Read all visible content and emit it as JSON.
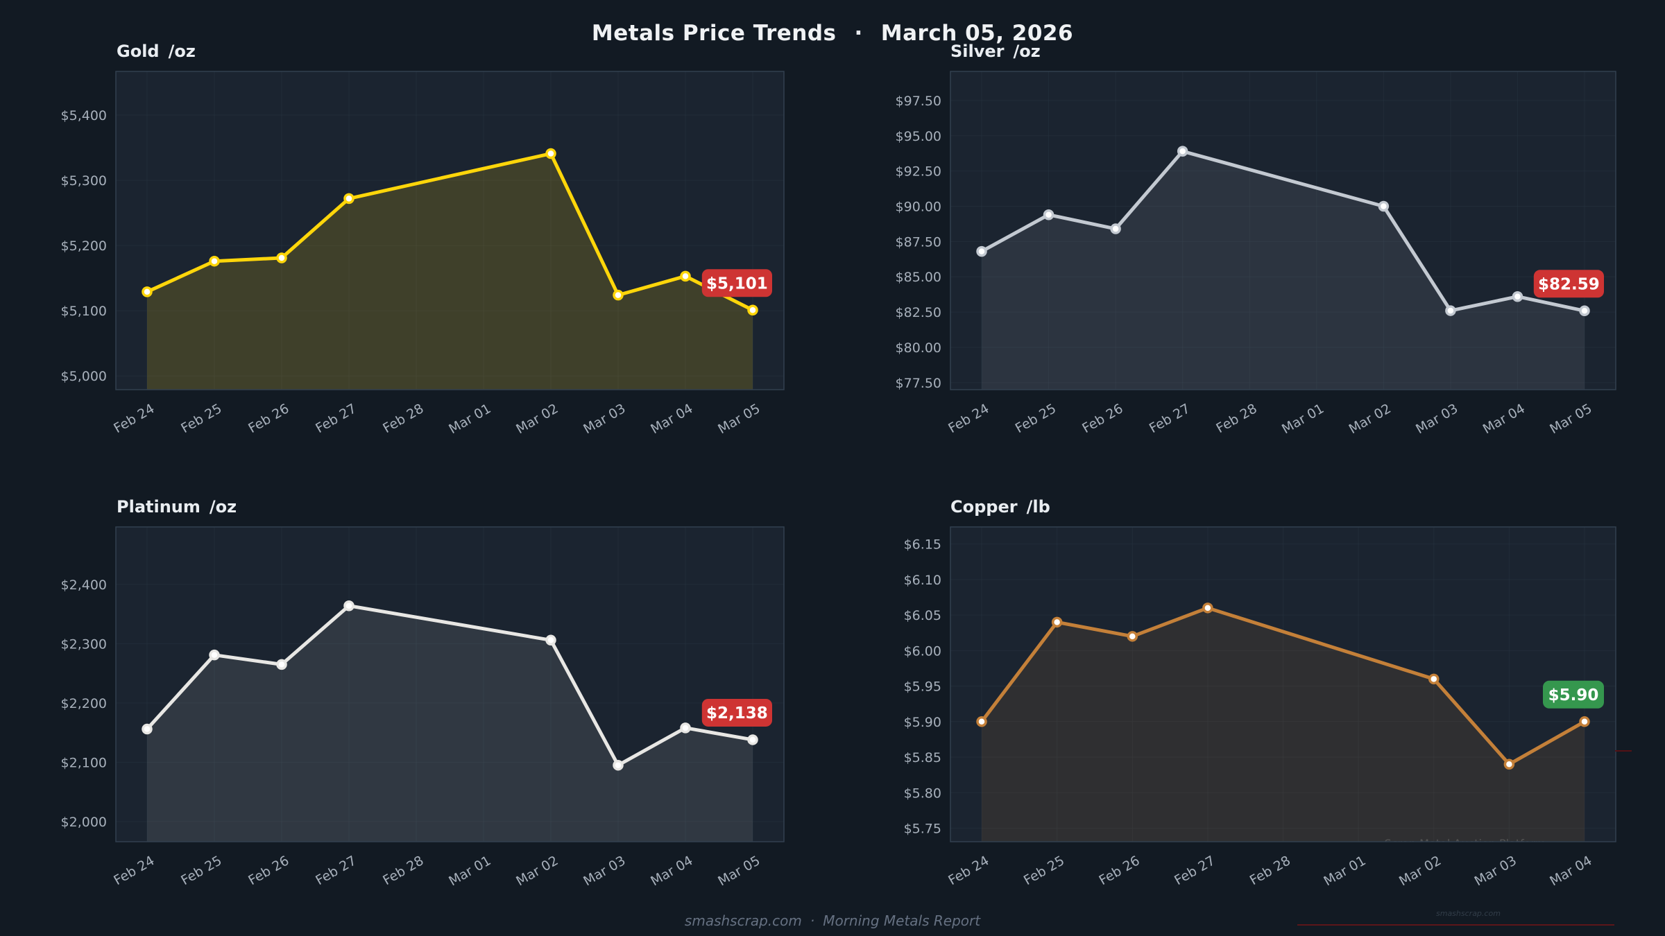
{
  "header": {
    "title": "Metals Price Trends",
    "separator": "·",
    "date": "March 05, 2026"
  },
  "footer": {
    "site": "smashscrap.com",
    "separator": "·",
    "report": "Morning Metals Report"
  },
  "watermark": {
    "platform": "Scrap Metal Auction Platform",
    "site": "smashscrap.com"
  },
  "colors": {
    "page_bg": "#121a23",
    "plot_bg": "#1b2430",
    "grid": "#273340",
    "plot_border": "#32404f",
    "tick_text": "#a7b0bb",
    "badge_red": "#ce3433",
    "badge_green": "#35974e",
    "gold": "#ffd60a",
    "silver": "#c3c9d1",
    "platinum": "#e8e7e4",
    "copper": "#c48039"
  },
  "chart_data": [
    {
      "id": "gold",
      "type": "area",
      "title": "Gold",
      "unit": "/oz",
      "line_color": "#ffd60a",
      "fill_opacity": 0.16,
      "badge": {
        "label": "$5,101",
        "bg": "#ce3433",
        "fg": "#ffffff"
      },
      "categories": [
        "Feb 24",
        "Feb 25",
        "Feb 26",
        "Feb 27",
        "Feb 28",
        "Mar 01",
        "Mar 02",
        "Mar 03",
        "Mar 04",
        "Mar 05"
      ],
      "y_tick_labels": [
        "$5,400",
        "$5,300",
        "$5,200",
        "$5,100",
        "$5,000"
      ],
      "y_tick_values": [
        5400,
        5300,
        5200,
        5100,
        5000
      ],
      "ylim": [
        4979,
        5467
      ],
      "points": [
        {
          "i": 0,
          "date": "Feb 24",
          "value": 5129
        },
        {
          "i": 1,
          "date": "Feb 25",
          "value": 5176
        },
        {
          "i": 2,
          "date": "Feb 26",
          "value": 5181
        },
        {
          "i": 3,
          "date": "Feb 27",
          "value": 5272
        },
        {
          "i": 6,
          "date": "Mar 02",
          "value": 5341
        },
        {
          "i": 7,
          "date": "Mar 03",
          "value": 5124
        },
        {
          "i": 8,
          "date": "Mar 04",
          "value": 5153
        },
        {
          "i": 9,
          "date": "Mar 05",
          "value": 5101
        }
      ]
    },
    {
      "id": "silver",
      "type": "area",
      "title": "Silver",
      "unit": "/oz",
      "line_color": "#c3c9d1",
      "fill_opacity": 0.1,
      "badge": {
        "label": "$82.59",
        "bg": "#ce3433",
        "fg": "#ffffff"
      },
      "categories": [
        "Feb 24",
        "Feb 25",
        "Feb 26",
        "Feb 27",
        "Feb 28",
        "Mar 01",
        "Mar 02",
        "Mar 03",
        "Mar 04",
        "Mar 05"
      ],
      "y_tick_labels": [
        "$97.50",
        "$95.00",
        "$92.50",
        "$90.00",
        "$87.50",
        "$85.00",
        "$82.50",
        "$80.00",
        "$77.50"
      ],
      "y_tick_values": [
        97.5,
        95.0,
        92.5,
        90.0,
        87.5,
        85.0,
        82.5,
        80.0,
        77.5
      ],
      "ylim": [
        77.0,
        99.56
      ],
      "points": [
        {
          "i": 0,
          "date": "Feb 24",
          "value": 86.8
        },
        {
          "i": 1,
          "date": "Feb 25",
          "value": 89.4
        },
        {
          "i": 2,
          "date": "Feb 26",
          "value": 88.4
        },
        {
          "i": 3,
          "date": "Feb 27",
          "value": 93.9
        },
        {
          "i": 6,
          "date": "Mar 02",
          "value": 90.0
        },
        {
          "i": 7,
          "date": "Mar 03",
          "value": 82.6
        },
        {
          "i": 8,
          "date": "Mar 04",
          "value": 83.6
        },
        {
          "i": 9,
          "date": "Mar 05",
          "value": 82.59
        }
      ]
    },
    {
      "id": "platinum",
      "type": "area",
      "title": "Platinum",
      "unit": "/oz",
      "line_color": "#e8e7e4",
      "fill_opacity": 0.1,
      "badge": {
        "label": "$2,138",
        "bg": "#ce3433",
        "fg": "#ffffff"
      },
      "categories": [
        "Feb 24",
        "Feb 25",
        "Feb 26",
        "Feb 27",
        "Feb 28",
        "Mar 01",
        "Mar 02",
        "Mar 03",
        "Mar 04",
        "Mar 05"
      ],
      "y_tick_labels": [
        "$2,400",
        "$2,300",
        "$2,200",
        "$2,100",
        "$2,000"
      ],
      "y_tick_values": [
        2400,
        2300,
        2200,
        2100,
        2000
      ],
      "ylim": [
        1966,
        2497
      ],
      "points": [
        {
          "i": 0,
          "date": "Feb 24",
          "value": 2156
        },
        {
          "i": 1,
          "date": "Feb 25",
          "value": 2281
        },
        {
          "i": 2,
          "date": "Feb 26",
          "value": 2265
        },
        {
          "i": 3,
          "date": "Feb 27",
          "value": 2364
        },
        {
          "i": 6,
          "date": "Mar 02",
          "value": 2306
        },
        {
          "i": 7,
          "date": "Mar 03",
          "value": 2095
        },
        {
          "i": 8,
          "date": "Mar 04",
          "value": 2158
        },
        {
          "i": 9,
          "date": "Mar 05",
          "value": 2138
        }
      ]
    },
    {
      "id": "copper",
      "type": "area",
      "title": "Copper",
      "unit": "/lb",
      "line_color": "#c48039",
      "fill_opacity": 0.12,
      "badge": {
        "label": "$5.90",
        "bg": "#35974e",
        "fg": "#ffffff"
      },
      "categories": [
        "Feb 24",
        "Feb 25",
        "Feb 26",
        "Feb 27",
        "Feb 28",
        "Mar 01",
        "Mar 02",
        "Mar 03",
        "Mar 04"
      ],
      "y_tick_labels": [
        "$6.15",
        "$6.10",
        "$6.05",
        "$6.00",
        "$5.95",
        "$5.90",
        "$5.85",
        "$5.80",
        "$5.75"
      ],
      "y_tick_values": [
        6.15,
        6.1,
        6.05,
        6.0,
        5.95,
        5.9,
        5.85,
        5.8,
        5.75
      ],
      "ylim": [
        5.731,
        6.174
      ],
      "points": [
        {
          "i": 0,
          "date": "Feb 24",
          "value": 5.9
        },
        {
          "i": 1,
          "date": "Feb 25",
          "value": 6.04
        },
        {
          "i": 2,
          "date": "Feb 26",
          "value": 6.02
        },
        {
          "i": 3,
          "date": "Feb 27",
          "value": 6.06
        },
        {
          "i": 6,
          "date": "Mar 02",
          "value": 5.96
        },
        {
          "i": 7,
          "date": "Mar 03",
          "value": 5.84
        },
        {
          "i": 8,
          "date": "Mar 04",
          "value": 5.9
        }
      ]
    }
  ]
}
